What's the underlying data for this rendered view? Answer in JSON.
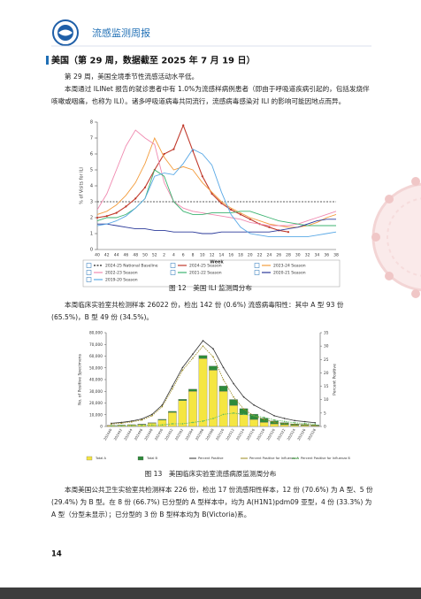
{
  "header": {
    "title": "流感监测周报"
  },
  "section": {
    "title": "美国（第 29 周，数据截至 2025 年 7 月 19 日）"
  },
  "paragraphs": [
    "第 29 周，美国全境季节性流感活动水平低。",
    "本周通过 ILINet 报告的就诊患者中有 1.0%为流感样病例患者（即由于呼吸道疾病引起的，包括发烧伴咳嗽或咽痛，也称为 ILI）。诸多呼吸道病毒共同流行，流感病毒感染对 ILI 的影响可能因地点而异。",
    "本周临床实验室共检测样本 26022 份，检出 142 份 (0.6%) 流感病毒阳性：其中 A 型 93 份 (65.5%)，B 型 49 份 (34.5%)。",
    "本周美国公共卫生实验室共检测样本 226 份，检出 17 份流感阳性样本，12 份 (70.6%) 为 A 型、5 份 (29.4%) 为 B 型。在 8 份 (66.7%) 已分型的 A 型样本中，均为 A(H1N1)pdm09 亚型，4 份 (33.3%) 为 A 型（分型未显示）；已分型的 3 份 B 型样本均为 B(Victoria)系。"
  ],
  "figures": [
    {
      "caption": "图 12　美国 ILI 监测周分布",
      "chart_data": {
        "type": "line",
        "xlabel": "Week",
        "ylabel": "% of Visits for ILI",
        "categories": [
          "40",
          "42",
          "44",
          "46",
          "48",
          "50",
          "52",
          "2",
          "4",
          "6",
          "8",
          "10",
          "12",
          "14",
          "16",
          "18",
          "20",
          "22",
          "24",
          "26",
          "28",
          "30",
          "32",
          "34",
          "36",
          "38"
        ],
        "ylim": [
          0,
          8
        ],
        "yticks": [
          0,
          1,
          2,
          3,
          4,
          5,
          6,
          7,
          8
        ],
        "series": [
          {
            "name": "2024-25 National Baseline",
            "color": "#222222",
            "baseline": 3.0
          },
          {
            "name": "2024-25 Season",
            "color": "#c0392b",
            "markers": true,
            "values": [
              2.0,
              2.1,
              2.3,
              2.7,
              3.2,
              3.9,
              5.0,
              6.0,
              6.3,
              7.8,
              6.2,
              4.6,
              3.5,
              2.9,
              2.5,
              2.2,
              1.9,
              1.6,
              1.4,
              1.2,
              1.1,
              null,
              null,
              null,
              null,
              null
            ]
          },
          {
            "name": "2023-24 Season",
            "color": "#f39c3c",
            "values": [
              2.2,
              2.4,
              2.8,
              3.4,
              4.2,
              5.4,
              7.0,
              5.8,
              5.0,
              5.2,
              5.0,
              4.2,
              3.6,
              3.0,
              2.6,
              2.3,
              2.0,
              1.8,
              1.6,
              1.5,
              1.4,
              1.4,
              1.5,
              1.7,
              2.0,
              2.2
            ]
          },
          {
            "name": "2022-23 Season",
            "color": "#f08ab0",
            "values": [
              2.5,
              3.5,
              5.0,
              6.5,
              7.5,
              7.0,
              6.6,
              4.2,
              3.0,
              2.6,
              2.4,
              2.3,
              2.2,
              2.1,
              2.0,
              1.9,
              1.7,
              1.6,
              1.5,
              1.5,
              1.5,
              1.6,
              1.8,
              2.0,
              2.2,
              2.4
            ]
          },
          {
            "name": "2021-22 Season",
            "color": "#3cb371",
            "values": [
              1.8,
              2.0,
              2.0,
              2.2,
              2.6,
              3.2,
              5.0,
              4.6,
              3.0,
              2.4,
              2.2,
              2.2,
              2.3,
              2.3,
              2.3,
              2.4,
              2.4,
              2.2,
              2.0,
              1.8,
              1.7,
              1.6,
              1.5,
              1.5,
              1.5,
              1.5
            ]
          },
          {
            "name": "2020-21 Season",
            "color": "#2b3a9a",
            "values": [
              1.6,
              1.6,
              1.5,
              1.4,
              1.3,
              1.3,
              1.2,
              1.2,
              1.1,
              1.1,
              1.1,
              1.0,
              1.0,
              1.1,
              1.1,
              1.1,
              1.1,
              1.1,
              1.1,
              1.2,
              1.3,
              1.4,
              1.6,
              1.8,
              1.9,
              1.9
            ]
          },
          {
            "name": "2019-20 Season",
            "color": "#5aa9e6",
            "values": [
              1.5,
              1.6,
              1.8,
              2.1,
              2.6,
              3.2,
              4.6,
              4.8,
              4.7,
              5.4,
              6.3,
              6.0,
              5.3,
              3.6,
              2.2,
              1.4,
              1.0,
              0.9,
              0.8,
              0.8,
              0.8,
              0.8,
              0.8,
              0.9,
              1.0,
              1.1
            ]
          }
        ]
      }
    },
    {
      "caption": "图 13　美国临床实验室流感病原监测周分布",
      "chart_data": {
        "type": "bar-line",
        "ylabel": "No. of Positive Specimens",
        "y2label": "Percent Positive",
        "categories": [
          "202440",
          "202442",
          "202444",
          "202446",
          "202448",
          "202450",
          "202452",
          "202502",
          "202504",
          "202506",
          "202508",
          "202510",
          "202512",
          "202514",
          "202516",
          "202518",
          "202520",
          "202522",
          "202524",
          "202526",
          "202528"
        ],
        "ylim": [
          0,
          80000
        ],
        "yticks": [
          0,
          {
            "value": 10000,
            "label": "10,000"
          },
          {
            "value": 20000,
            "label": "20,000"
          },
          {
            "value": 30000,
            "label": "30,000"
          },
          {
            "value": 40000,
            "label": "40,000"
          },
          {
            "value": 50000,
            "label": "50,000"
          },
          {
            "value": 60000,
            "label": "60,000"
          },
          {
            "value": 70000,
            "label": "70,000"
          },
          {
            "value": 80000,
            "label": "80,000"
          }
        ],
        "y2lim": [
          0,
          35
        ],
        "y2ticks": [
          0,
          5,
          10,
          15,
          20,
          25,
          30,
          35
        ],
        "series": [
          {
            "name": "Total A",
            "type": "bar",
            "color": "#f5e642",
            "values": [
              800,
              1000,
              1300,
              1800,
              2800,
              5500,
              12000,
              22000,
              30000,
              58000,
              48000,
              30000,
              18000,
              10000,
              6000,
              3500,
              2200,
              1500,
              1000,
              800,
              600
            ]
          },
          {
            "name": "Total B",
            "type": "bar",
            "color": "#2e8b3a",
            "values": [
              200,
              200,
              250,
              300,
              400,
              600,
              900,
              1200,
              1800,
              2500,
              3500,
              4500,
              5000,
              5200,
              4500,
              3500,
              2500,
              1800,
              1200,
              900,
              700
            ]
          },
          {
            "name": "Percent Positive",
            "type": "line",
            "axis": "y2",
            "color": "#333333",
            "values": [
              1.2,
              1.5,
              2.0,
              2.8,
              4.5,
              8.0,
              15.0,
              22.0,
              27.0,
              32.0,
              29.0,
              22.0,
              16.0,
              11.0,
              8.0,
              6.0,
              4.0,
              3.0,
              2.2,
              1.8,
              1.4
            ]
          },
          {
            "name": "Percent Positive for Influenza A",
            "type": "line",
            "axis": "y2",
            "color": "#9a8a1e",
            "values": [
              0.9,
              1.2,
              1.7,
              2.4,
              4.0,
              7.4,
              14.0,
              21.0,
              25.5,
              30.0,
              26.0,
              17.5,
              11.0,
              6.5,
              4.0,
              2.6,
              1.6,
              1.1,
              0.8,
              0.7,
              0.5
            ]
          },
          {
            "name": "Percent Positive for Influenza B",
            "type": "line",
            "axis": "y2",
            "color": "#5cb85c",
            "values": [
              0.3,
              0.3,
              0.3,
              0.4,
              0.5,
              0.6,
              1.0,
              1.0,
              1.5,
              2.0,
              3.0,
              4.5,
              5.0,
              4.5,
              4.0,
              3.4,
              2.4,
              1.9,
              1.4,
              1.1,
              0.9
            ]
          }
        ]
      }
    }
  ],
  "page_number": "14"
}
